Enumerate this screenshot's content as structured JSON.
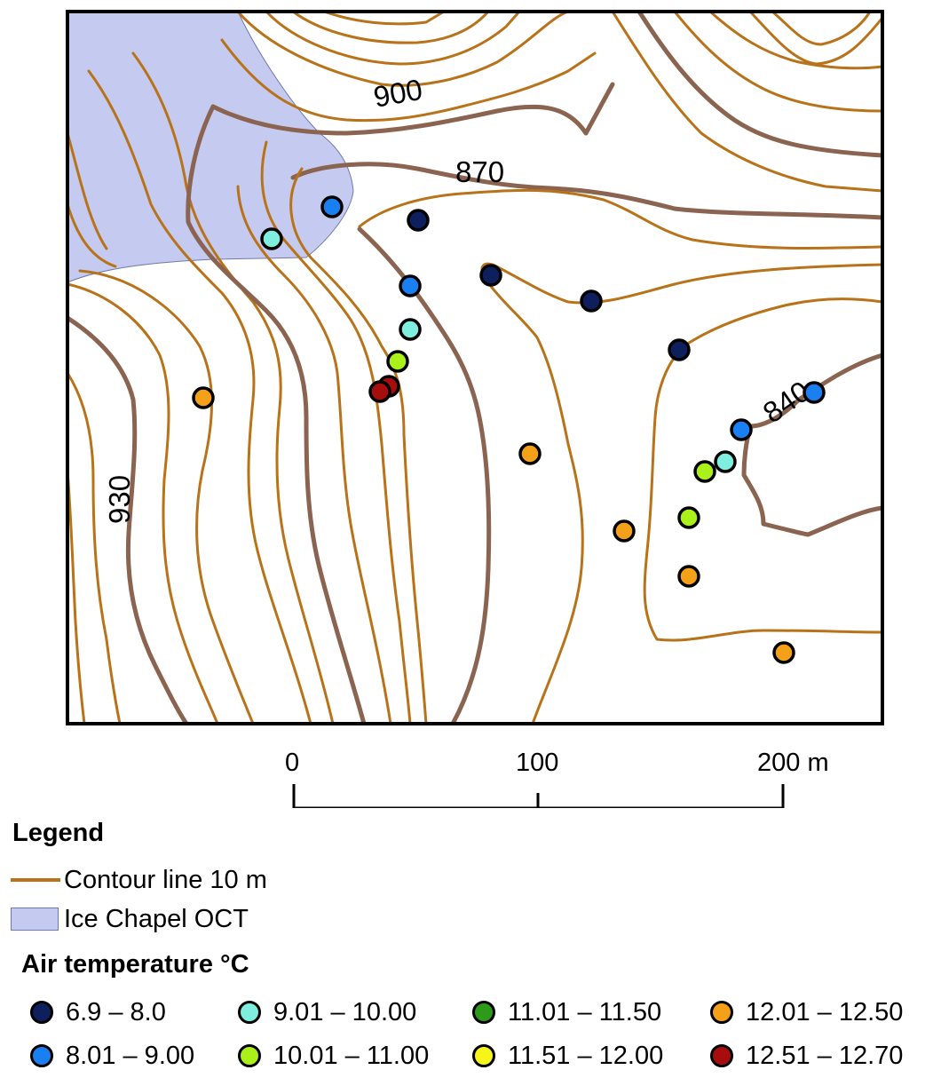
{
  "map": {
    "contour_labels": [
      "900",
      "870",
      "840",
      "930"
    ]
  },
  "scale_bar": {
    "ticks": [
      "0",
      "100",
      "200 m"
    ]
  },
  "legend": {
    "title": "Legend",
    "contour_label": "Contour line 10 m",
    "ice_label": "Ice Chapel OCT",
    "colors": {
      "contour": "#b8731a",
      "index_contour": "#8a6450",
      "ice_fill": "#c5caf0"
    }
  },
  "air_temperature": {
    "title": "Air temperature °C",
    "classes": [
      {
        "range": "6.9 – 8.0",
        "color": "#0d1f5c"
      },
      {
        "range": "8.01 – 9.00",
        "color": "#1a7ff0"
      },
      {
        "range": "9.01 – 10.00",
        "color": "#7feede"
      },
      {
        "range": "10.01 – 11.00",
        "color": "#aaf01a"
      },
      {
        "range": "11.01 – 11.50",
        "color": "#2e9a1a"
      },
      {
        "range": "11.51 – 12.00",
        "color": "#f5f51a"
      },
      {
        "range": "12.01 – 12.50",
        "color": "#f5a019"
      },
      {
        "range": "12.51 – 12.70",
        "color": "#a80d0d"
      }
    ]
  }
}
